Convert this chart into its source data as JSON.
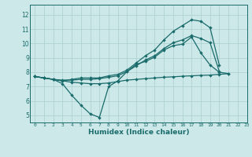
{
  "background_color": "#cce8e8",
  "grid_color": "#aacece",
  "line_color": "#1a6b6b",
  "xlabel": "Humidex (Indice chaleur)",
  "xlim": [
    -0.5,
    23
  ],
  "ylim": [
    4.5,
    12.7
  ],
  "yticks": [
    5,
    6,
    7,
    8,
    9,
    10,
    11,
    12
  ],
  "xticks": [
    0,
    1,
    2,
    3,
    4,
    5,
    6,
    7,
    8,
    9,
    10,
    11,
    12,
    13,
    14,
    15,
    16,
    17,
    18,
    19,
    20,
    21,
    22,
    23
  ],
  "line1_y": [
    7.7,
    7.6,
    7.5,
    7.2,
    6.4,
    5.7,
    5.1,
    4.85,
    7.0,
    7.4,
    8.05,
    8.55,
    8.75,
    9.05,
    9.55,
    9.85,
    9.95,
    10.45,
    9.35,
    8.5,
    8.0,
    7.9,
    null,
    null
  ],
  "line2_y": [
    7.7,
    7.6,
    7.5,
    7.45,
    7.45,
    7.5,
    7.5,
    7.55,
    7.65,
    7.75,
    8.05,
    8.45,
    8.85,
    9.15,
    9.65,
    10.05,
    10.25,
    10.55,
    10.35,
    10.05,
    8.05,
    null,
    null,
    null
  ],
  "line3_y": [
    7.7,
    7.6,
    7.5,
    7.4,
    7.5,
    7.6,
    7.6,
    7.6,
    7.75,
    7.85,
    8.15,
    8.65,
    9.15,
    9.55,
    10.25,
    10.85,
    11.25,
    11.65,
    11.55,
    11.1,
    8.5,
    null,
    null,
    null
  ],
  "line4_y": [
    7.7,
    7.6,
    7.5,
    7.4,
    7.3,
    7.25,
    7.2,
    7.2,
    7.25,
    7.35,
    7.45,
    7.5,
    7.55,
    7.6,
    7.65,
    7.68,
    7.72,
    7.75,
    7.78,
    7.8,
    7.85,
    7.9,
    null,
    null
  ]
}
